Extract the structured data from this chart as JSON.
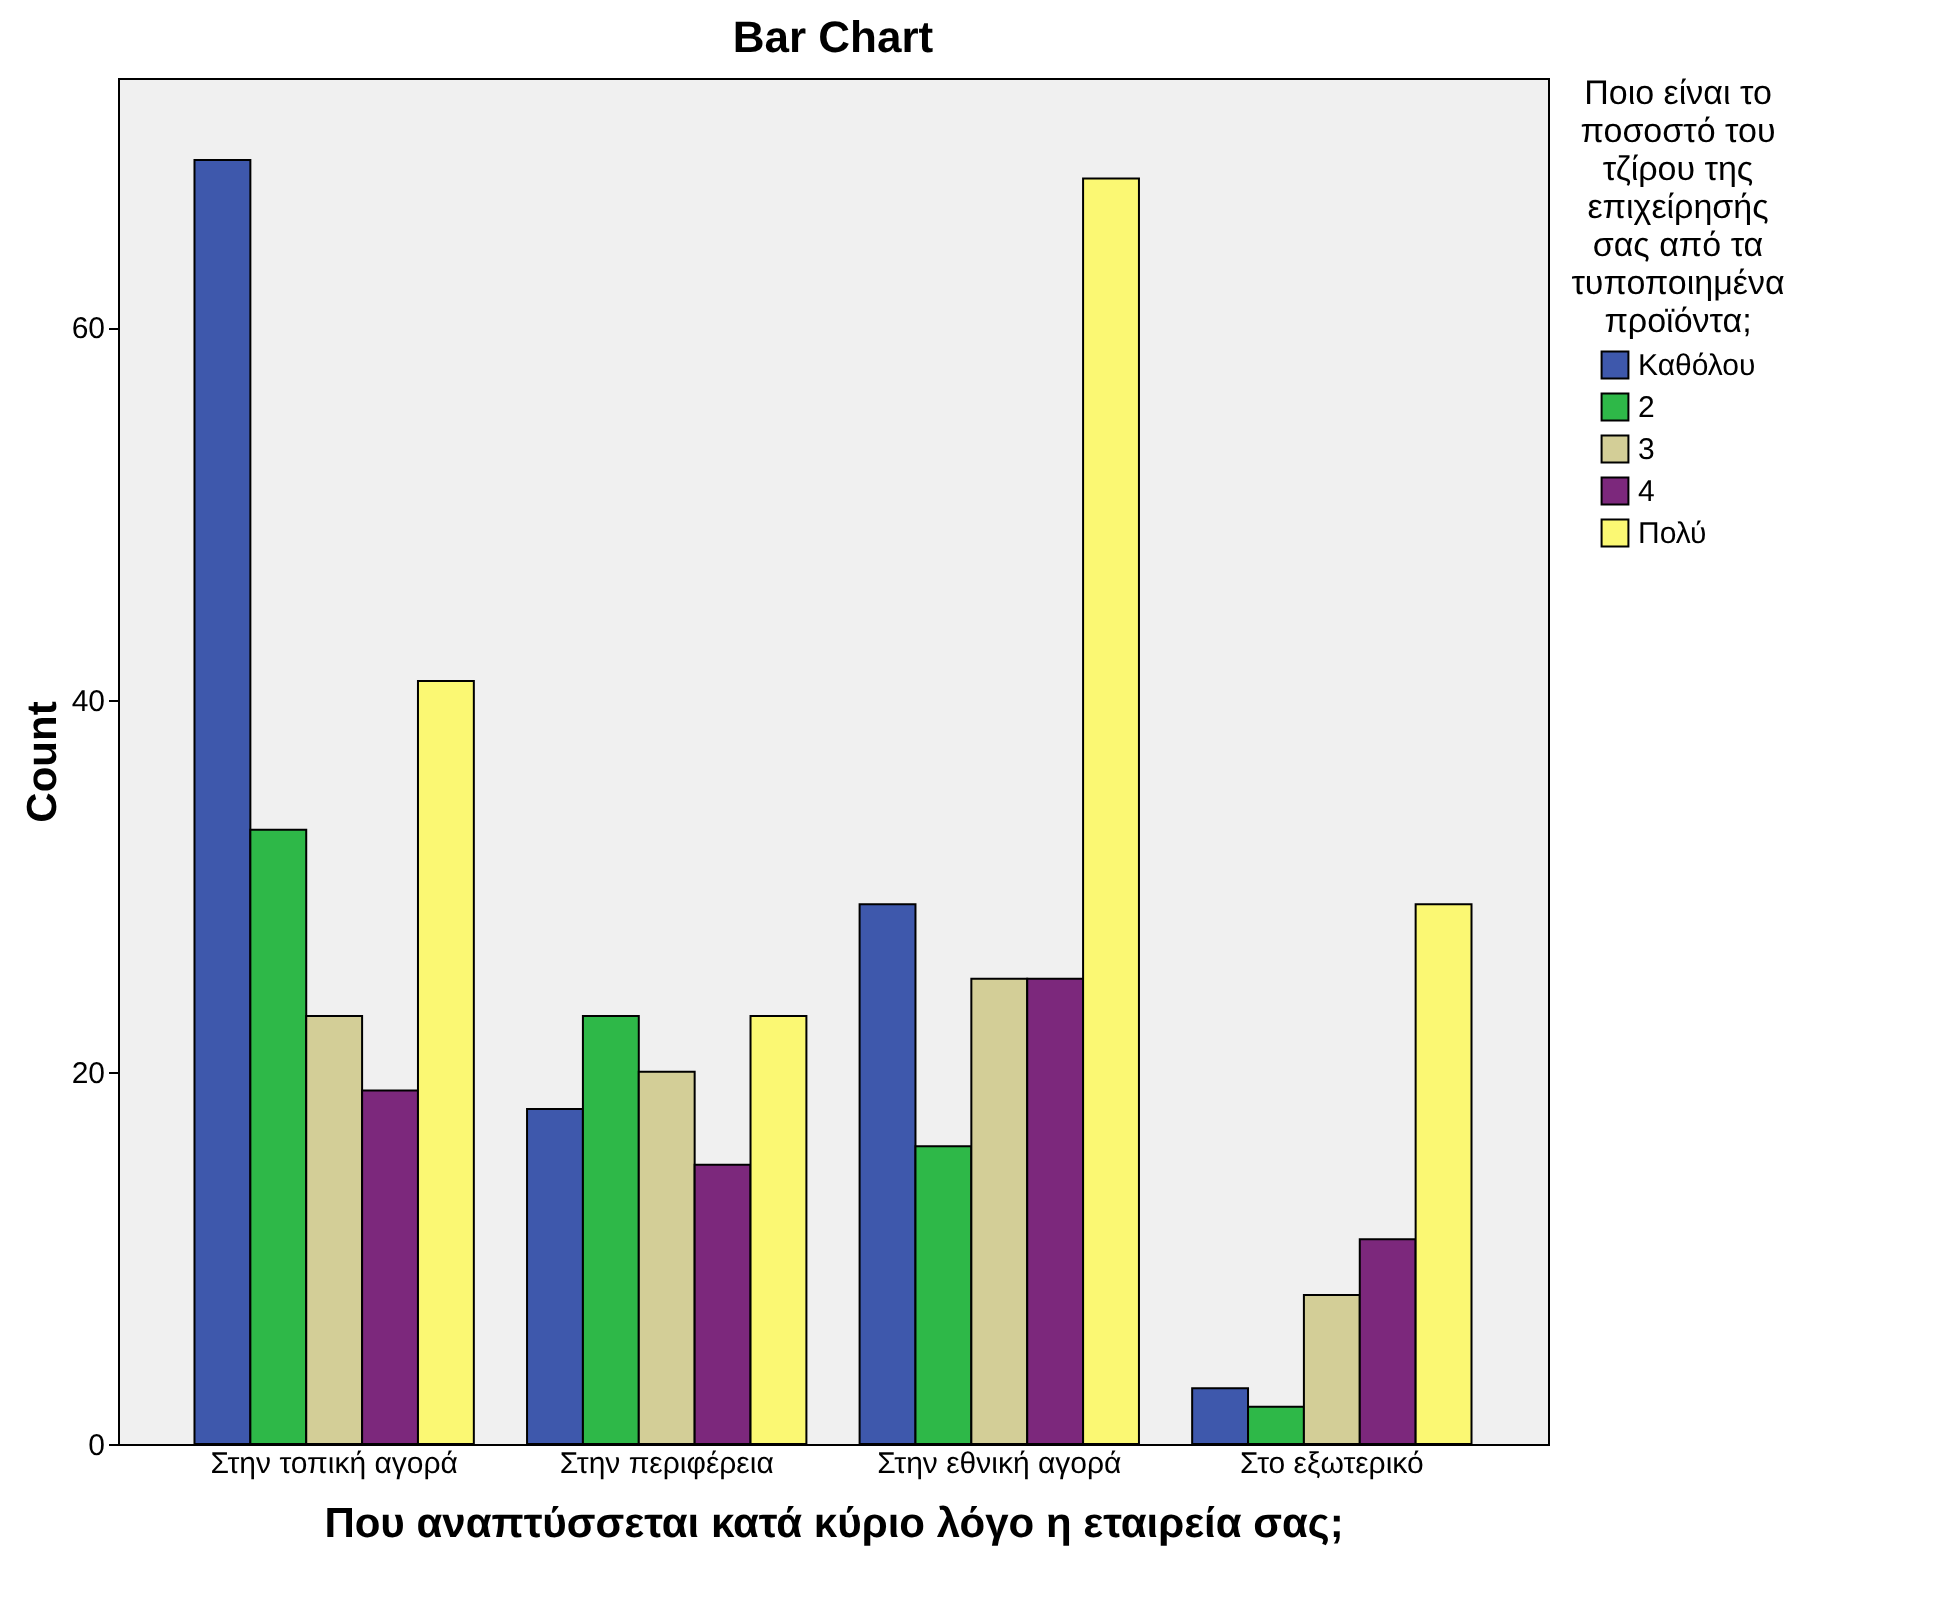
{
  "chart_data": {
    "type": "bar",
    "title": "Bar Chart",
    "xlabel": "Που αναπτύσσεται κατά κύριο λόγο η εταιρεία σας;",
    "ylabel": "Count",
    "legend_title": "Ποιο είναι το ποσοστό του τζίρου της επιχείρησής σας από τα τυποποιημένα προϊόντα;",
    "categories": [
      "Στην τοπική αγορά",
      "Στην περιφέρεια",
      "Στην εθνική αγορά",
      "Στο εξωτερικό"
    ],
    "series": [
      {
        "name": "Καθόλου",
        "color": "#3e58ac",
        "values": [
          69,
          18,
          29,
          3
        ]
      },
      {
        "name": "2",
        "color": "#2eb848",
        "values": [
          33,
          23,
          16,
          2
        ]
      },
      {
        "name": "3",
        "color": "#d3ce97",
        "values": [
          23,
          20,
          25,
          8
        ]
      },
      {
        "name": "4",
        "color": "#7c287c",
        "values": [
          19,
          15,
          25,
          11
        ]
      },
      {
        "name": "Πολύ",
        "color": "#fbf873",
        "values": [
          41,
          23,
          68,
          29
        ]
      }
    ],
    "ylim": [
      0,
      73.4
    ],
    "yticks": [
      0,
      20,
      40,
      60
    ],
    "grid": false,
    "legend": "right"
  }
}
